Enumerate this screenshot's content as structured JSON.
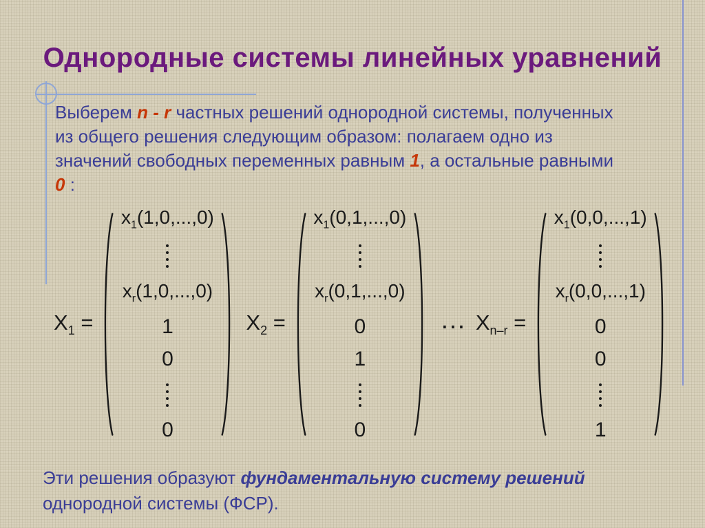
{
  "title": "Однородные системы линейных уравнений",
  "colors": {
    "background": "#d7d0ba",
    "title_purple": "#6B1A7D",
    "body_blue": "#3A3D96",
    "accent_red": "#C63708",
    "math_black": "#1a1a1a",
    "guide_line_blue": "#8FA6D6"
  },
  "paragraph_lines": [
    [
      {
        "t": "Выберем "
      },
      {
        "t": "n - r",
        "style": "accent"
      },
      {
        "t": "  частных решений однородной системы, полученных"
      }
    ],
    [
      {
        "t": "из общего решения следующим образом: полагаем одно из"
      }
    ],
    [
      {
        "t": "значений свободных переменных равным "
      },
      {
        "t": "1",
        "style": "accent"
      },
      {
        "t": ", а остальные равными"
      }
    ],
    [
      {
        "t": "0",
        "style": "accent"
      },
      {
        "t": " :"
      }
    ]
  ],
  "ellipsis": "…",
  "matrices": [
    {
      "label": "X",
      "sub": "1",
      "eq": "=",
      "rows": [
        {
          "kind": "expr",
          "base": "x",
          "sub": "1",
          "rest": "(1,0,...,0)"
        },
        {
          "kind": "dots"
        },
        {
          "kind": "expr",
          "base": "x",
          "sub": "r",
          "rest": "(1,0,...,0)"
        },
        {
          "kind": "num",
          "v": "1"
        },
        {
          "kind": "num",
          "v": "0"
        },
        {
          "kind": "dots"
        },
        {
          "kind": "num",
          "v": "0"
        }
      ]
    },
    {
      "label": "X",
      "sub": "2",
      "eq": "=",
      "rows": [
        {
          "kind": "expr",
          "base": "x",
          "sub": "1",
          "rest": "(0,1,...,0)"
        },
        {
          "kind": "dots"
        },
        {
          "kind": "expr",
          "base": "x",
          "sub": "r",
          "rest": "(0,1,...,0)"
        },
        {
          "kind": "num",
          "v": "0"
        },
        {
          "kind": "num",
          "v": "1"
        },
        {
          "kind": "dots"
        },
        {
          "kind": "num",
          "v": "0"
        }
      ]
    },
    {
      "label": "X",
      "sub": "n–r",
      "eq": "=",
      "rows": [
        {
          "kind": "expr",
          "base": "x",
          "sub": "1",
          "rest": "(0,0,...,1)"
        },
        {
          "kind": "dots"
        },
        {
          "kind": "expr",
          "base": "x",
          "sub": "r",
          "rest": "(0,0,...,1)"
        },
        {
          "kind": "num",
          "v": "0"
        },
        {
          "kind": "num",
          "v": "0"
        },
        {
          "kind": "dots"
        },
        {
          "kind": "num",
          "v": "1"
        }
      ]
    }
  ],
  "footer_lines": [
    [
      {
        "t": "Эти решения образуют "
      },
      {
        "t": "фундаментальную систему решений",
        "style": "bi"
      }
    ],
    [
      {
        "t": "однородной системы (ФСР)."
      }
    ]
  ]
}
